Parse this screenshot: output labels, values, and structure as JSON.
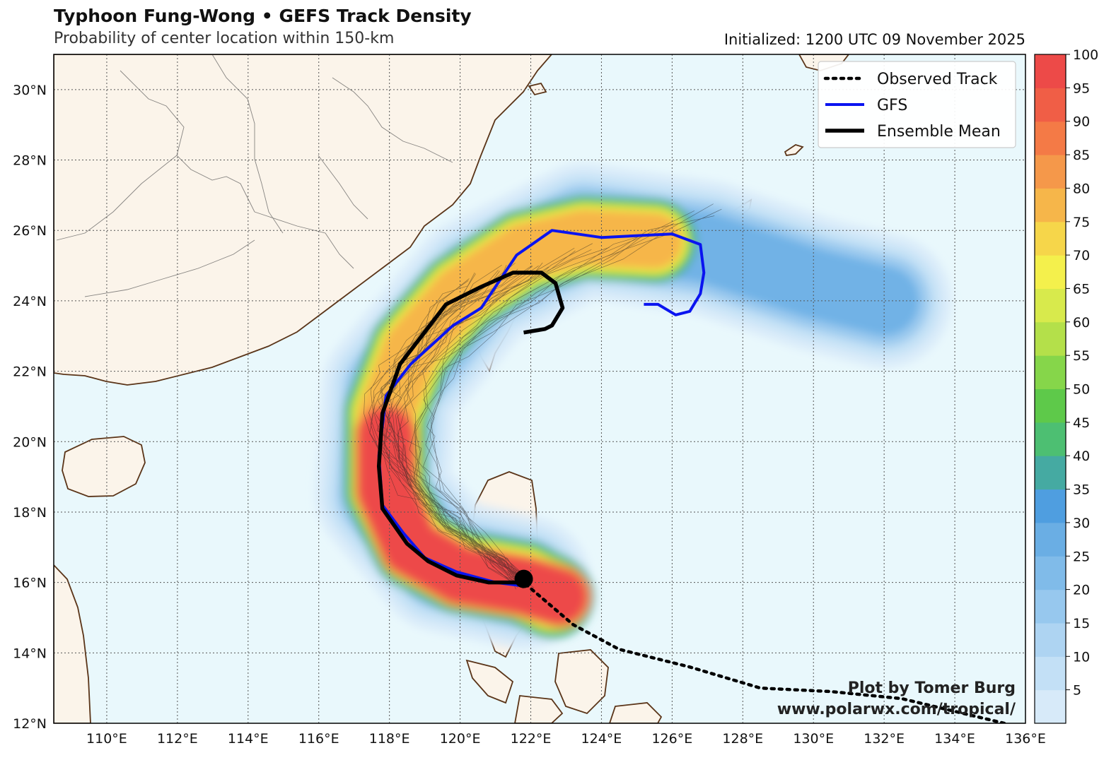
{
  "header": {
    "title": "Typhoon Fung-Wong • GEFS Track Density",
    "subtitle": "Probability of center location within 150-km",
    "initialized": "Initialized: 1200 UTC 09 November 2025"
  },
  "map": {
    "lat_labels": [
      "30°N",
      "28°N",
      "26°N",
      "24°N",
      "22°N",
      "20°N",
      "18°N",
      "16°N",
      "14°N",
      "12°N"
    ],
    "lon_labels": [
      "110°E",
      "112°E",
      "114°E",
      "116°E",
      "118°E",
      "120°E",
      "122°E",
      "124°E",
      "126°E",
      "128°E",
      "130°E",
      "132°E",
      "134°E",
      "136°E"
    ],
    "extent": {
      "lon": [
        108.5,
        136
      ],
      "lat": [
        12,
        31
      ]
    },
    "land_color": "#fbf4ea",
    "ocean_color": "#e9f8fc",
    "coast_color": "#5a3418"
  },
  "legend": {
    "items": [
      {
        "label": "Observed Track",
        "style": "dotted",
        "color": "#000000"
      },
      {
        "label": "GFS",
        "style": "solid",
        "color": "#0a14f0"
      },
      {
        "label": "Ensemble Mean",
        "style": "solid",
        "color": "#000000"
      }
    ]
  },
  "colorbar": {
    "ticks": [
      "100",
      "95",
      "90",
      "85",
      "80",
      "75",
      "70",
      "65",
      "60",
      "55",
      "50",
      "45",
      "40",
      "35",
      "30",
      "25",
      "20",
      "15",
      "10",
      "5"
    ],
    "colors": [
      "#d7eaf9",
      "#c3e0f6",
      "#aed4f2",
      "#97c8ee",
      "#80bbe9",
      "#6aaee4",
      "#4f9ee0",
      "#45aaa2",
      "#4dbf72",
      "#5ec94a",
      "#86d64a",
      "#b4e04a",
      "#d8ea4c",
      "#f4f04c",
      "#f6d64a",
      "#f6b64a",
      "#f5984a",
      "#f47a46",
      "#f05e46",
      "#ed4a48"
    ]
  },
  "tracks": {
    "observed": {
      "name": "Observed Track",
      "lon": [
        135.4,
        132.5,
        130.5,
        128.5,
        126.5,
        124.5,
        123.2,
        121.8
      ],
      "lat": [
        12.0,
        12.7,
        12.9,
        13.0,
        13.6,
        14.1,
        14.8,
        16.0
      ]
    },
    "gfs": {
      "name": "GFS",
      "lon": [
        121.8,
        121.0,
        119.9,
        119.0,
        118.4,
        117.8,
        117.7,
        117.9,
        118.6,
        119.8,
        120.6,
        121.6,
        122.6,
        124.0,
        126.0,
        126.8,
        126.9,
        126.8,
        126.5,
        126.1,
        125.6,
        125.2
      ],
      "lat": [
        15.9,
        16.0,
        16.3,
        16.7,
        17.4,
        18.2,
        19.6,
        21.3,
        22.2,
        23.3,
        23.8,
        25.3,
        26.0,
        25.8,
        25.9,
        25.6,
        24.8,
        24.2,
        23.7,
        23.6,
        23.9,
        23.9
      ]
    },
    "ensemble_mean": {
      "name": "Ensemble Mean",
      "lon": [
        121.8,
        120.8,
        119.9,
        119.1,
        118.5,
        117.8,
        117.7,
        117.8,
        118.3,
        119.6,
        120.6,
        121.5,
        122.3,
        122.7,
        122.9,
        122.6,
        122.4,
        121.8
      ],
      "lat": [
        16.0,
        16.0,
        16.2,
        16.6,
        17.1,
        18.1,
        19.3,
        20.8,
        22.2,
        23.9,
        24.4,
        24.8,
        24.8,
        24.5,
        23.8,
        23.3,
        23.2,
        23.1
      ]
    },
    "current_position": {
      "lon": 121.8,
      "lat": 16.1
    }
  },
  "credit": {
    "line1": "Plot by Tomer Burg",
    "line2": "www.polarwx.com/tropical/"
  }
}
